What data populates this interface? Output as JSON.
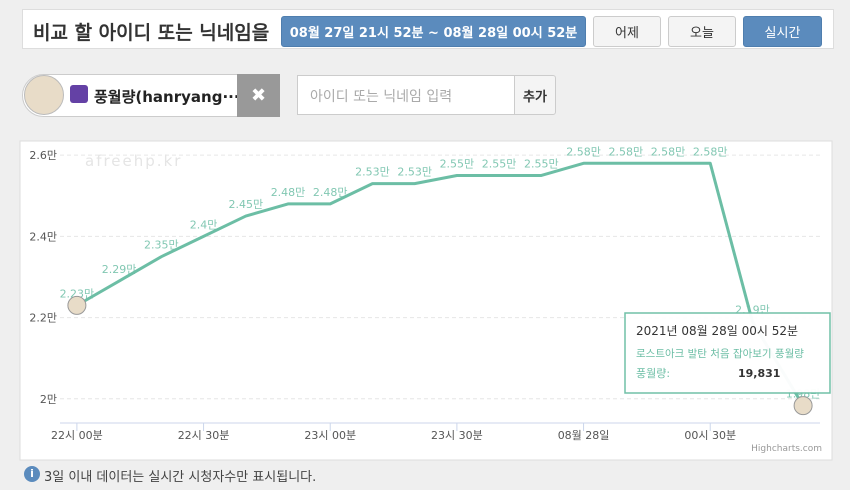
{
  "header": {
    "title": "비교 할 아이디 또는 닉네임을",
    "range": "08월 27일 21시 52분 ~ 08월 28일 00시 52분",
    "yesterday": "어제",
    "today": "오늘",
    "realtime": "실시간"
  },
  "streamer": {
    "name": "풍월량(hanryang···",
    "input_placeholder": "아이디 또는 닉네임 입력",
    "add": "추가"
  },
  "chart_data": {
    "type": "line",
    "watermark": "afreehp.kr",
    "credits": "Highcharts.com",
    "x": [
      "08-27 22:00",
      "08-27 22:10",
      "08-27 22:20",
      "08-27 22:30",
      "08-27 22:40",
      "08-27 22:50",
      "08-27 23:00",
      "08-27 23:10",
      "08-27 23:20",
      "08-27 23:30",
      "08-27 23:40",
      "08-27 23:50",
      "08-28 00:00",
      "08-28 00:10",
      "08-28 00:20",
      "08-28 00:30",
      "08-28 00:40",
      "08-28 00:52"
    ],
    "series": [
      {
        "color": "#6cbea5",
        "values": [
          22300,
          22900,
          23500,
          24000,
          24500,
          24800,
          24800,
          25300,
          25300,
          25500,
          25500,
          25500,
          25800,
          25800,
          25800,
          25800,
          21900,
          19831
        ],
        "value_labels": [
          "2.23만",
          "2.29만",
          "2.35만",
          "2.4만",
          "2.45만",
          "2.48만",
          "2.48만",
          "2.53만",
          "2.53만",
          "2.55만",
          "2.55만",
          "2.55만",
          "2.58만",
          "2.58만",
          "2.58만",
          "2.58만",
          "2.19만",
          "1.98만"
        ]
      }
    ],
    "xlim": [
      "08-27 21:56",
      "08-28 00:56"
    ],
    "xticks": [
      {
        "value": "08-27 22:00",
        "label": "22시 00분"
      },
      {
        "value": "08-27 22:30",
        "label": "22시 30분"
      },
      {
        "value": "08-27 23:00",
        "label": "23시 00분"
      },
      {
        "value": "08-27 23:30",
        "label": "23시 30분"
      },
      {
        "value": "08-28 00:00",
        "label": "08월 28일"
      },
      {
        "value": "08-28 00:30",
        "label": "00시 30분"
      }
    ],
    "ylim": [
      19600,
      26300
    ],
    "yticks": [
      {
        "value": 20000,
        "label": "2만"
      },
      {
        "value": 22000,
        "label": "2.2만"
      },
      {
        "value": 24000,
        "label": "2.4만"
      },
      {
        "value": 26000,
        "label": "2.6만"
      }
    ],
    "grid": true,
    "tooltip": {
      "date": "2021년 08월 28일 00시 52분",
      "subtitle": "로스트아크 발탄 처음 잡아보기 풍월량",
      "label": "풍월량:",
      "value": "19,831"
    }
  },
  "footer": {
    "note": "3일 이내 데이터는 실시간 시청자수만 표시됩니다."
  }
}
